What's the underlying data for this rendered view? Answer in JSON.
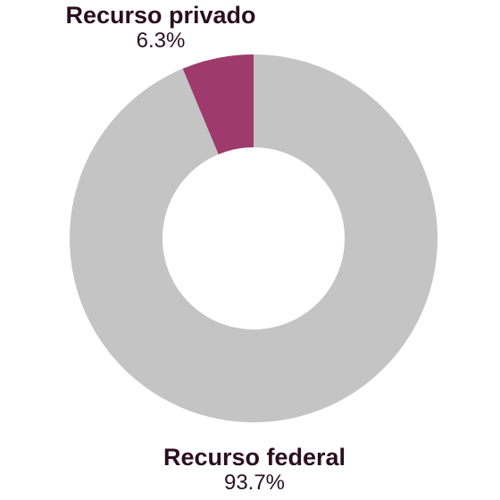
{
  "chart_data": {
    "type": "pie",
    "variant": "donut",
    "slices": [
      {
        "label": "Recurso privado",
        "value": 6.3,
        "value_label": "6.3%",
        "color": "#9e3a6c"
      },
      {
        "label": "Recurso federal",
        "value": 93.7,
        "value_label": "93.7%",
        "color": "#c4c4c4"
      }
    ]
  }
}
